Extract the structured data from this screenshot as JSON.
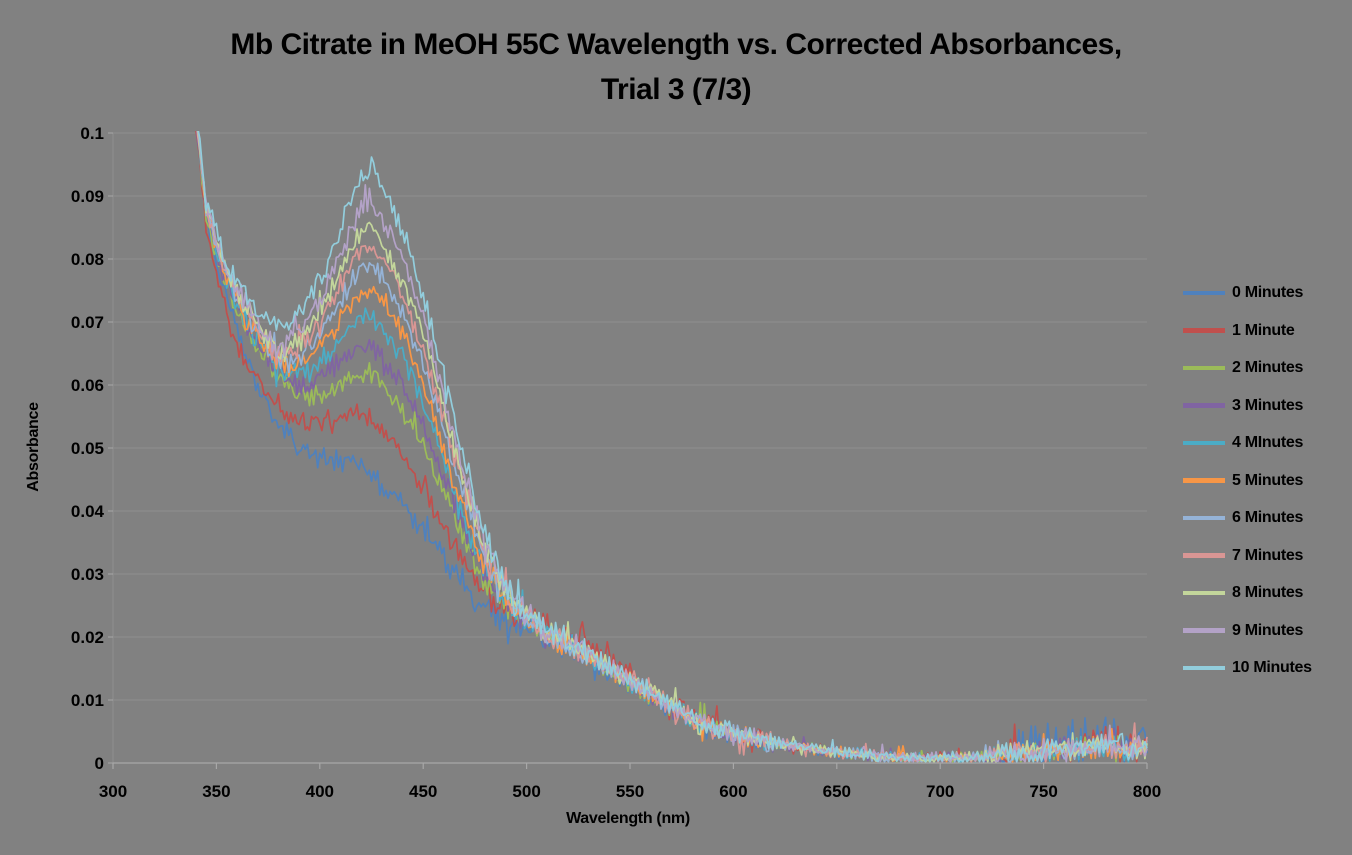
{
  "page": {
    "background": "#818181"
  },
  "chart_data": {
    "type": "line",
    "title": "Mb Citrate in MeOH 55C Wavelength vs. Corrected Absorbances,\nTrial 3 (7/3)",
    "xlabel": "Wavelength (nm)",
    "ylabel": "Absorbance",
    "xlim": [
      300,
      800
    ],
    "ylim": [
      0,
      0.1
    ],
    "x_ticks": [
      300,
      350,
      400,
      450,
      500,
      550,
      600,
      650,
      700,
      750,
      800
    ],
    "y_ticks": [
      0,
      0.01,
      0.02,
      0.03,
      0.04,
      0.05,
      0.06,
      0.07,
      0.08,
      0.09,
      0.1
    ],
    "y_tick_labels": [
      "0",
      "0.01",
      "0.02",
      "0.03",
      "0.04",
      "0.05",
      "0.06",
      "0.07",
      "0.08",
      "0.09",
      "0.1"
    ],
    "grid": "horizontal-major",
    "legend_position": "right",
    "plot_bg": "#818181",
    "gridline_color": "#8e8e8e",
    "axis_line_color": "#a8a8a8",
    "text_color": "#000000",
    "x_nm": [
      337,
      341,
      345,
      350,
      355,
      360,
      365,
      370,
      375,
      380,
      385,
      390,
      395,
      400,
      405,
      410,
      415,
      420,
      425,
      430,
      435,
      440,
      445,
      450,
      455,
      460,
      465,
      470,
      475,
      480,
      485,
      490,
      495,
      500,
      510,
      520,
      530,
      540,
      550,
      560,
      570,
      580,
      590,
      600,
      610,
      620,
      630,
      640,
      650,
      660,
      670,
      680,
      690,
      700,
      710,
      720,
      730,
      740,
      750,
      760,
      770,
      780,
      790,
      800
    ],
    "series": [
      {
        "name": "0 Minutes",
        "color": "#4F81BD",
        "values": [
          0.112,
          0.1,
          0.0875,
          0.079,
          0.0735,
          0.0685,
          0.064,
          0.06,
          0.057,
          0.054,
          0.052,
          0.05,
          0.049,
          0.0485,
          0.048,
          0.048,
          0.0475,
          0.047,
          0.046,
          0.044,
          0.0425,
          0.041,
          0.039,
          0.037,
          0.035,
          0.033,
          0.03,
          0.028,
          0.026,
          0.0245,
          0.0235,
          0.0225,
          0.022,
          0.0215,
          0.0195,
          0.0185,
          0.0165,
          0.0145,
          0.0125,
          0.0105,
          0.0085,
          0.0068,
          0.0055,
          0.0045,
          0.0038,
          0.0032,
          0.0026,
          0.0021,
          0.0018,
          0.0014,
          0.0011,
          0.0008,
          0.0007,
          0.0009,
          0.0008,
          0.001,
          0.0012,
          0.0016,
          0.0022,
          0.0028,
          0.003,
          0.0045,
          0.0028,
          0.0035
        ]
      },
      {
        "name": "1 Minute",
        "color": "#C0504D",
        "values": [
          0.11,
          0.098,
          0.0855,
          0.0765,
          0.0712,
          0.066,
          0.0632,
          0.0605,
          0.0585,
          0.057,
          0.0555,
          0.0545,
          0.054,
          0.054,
          0.0545,
          0.055,
          0.0555,
          0.0555,
          0.055,
          0.0535,
          0.0515,
          0.049,
          0.0465,
          0.0435,
          0.0405,
          0.0375,
          0.0345,
          0.0315,
          0.029,
          0.027,
          0.0255,
          0.0245,
          0.0238,
          0.023,
          0.022,
          0.021,
          0.019,
          0.0165,
          0.0145,
          0.012,
          0.01,
          0.008,
          0.0062,
          0.005,
          0.004,
          0.0033,
          0.0027,
          0.0022,
          0.0018,
          0.0014,
          0.0011,
          0.0008,
          0.0007,
          0.0009,
          0.0008,
          0.001,
          0.0012,
          0.0016,
          0.002,
          0.0024,
          0.0026,
          0.0042,
          0.0024,
          0.0028
        ]
      },
      {
        "name": "2 Minutes",
        "color": "#9BBB59",
        "values": [
          0.1115,
          0.0995,
          0.0872,
          0.08,
          0.0755,
          0.0715,
          0.0685,
          0.066,
          0.0635,
          0.0615,
          0.0595,
          0.058,
          0.058,
          0.0585,
          0.0595,
          0.0605,
          0.0615,
          0.062,
          0.062,
          0.0605,
          0.0585,
          0.056,
          0.053,
          0.05,
          0.0465,
          0.043,
          0.039,
          0.035,
          0.0315,
          0.029,
          0.0268,
          0.025,
          0.0237,
          0.0225,
          0.0198,
          0.0185,
          0.0167,
          0.0147,
          0.0127,
          0.0107,
          0.0087,
          0.0069,
          0.0056,
          0.0046,
          0.0038,
          0.0032,
          0.0026,
          0.0021,
          0.0018,
          0.0014,
          0.0011,
          0.0008,
          0.0007,
          0.0009,
          0.0008,
          0.001,
          0.0012,
          0.0016,
          0.002,
          0.0022,
          0.0024,
          0.0028,
          0.0022,
          0.0026
        ]
      },
      {
        "name": "3 Minutes",
        "color": "#8064A2",
        "values": [
          0.1118,
          0.0998,
          0.0875,
          0.081,
          0.0765,
          0.0725,
          0.0695,
          0.067,
          0.0645,
          0.0625,
          0.061,
          0.06,
          0.0605,
          0.0615,
          0.0625,
          0.064,
          0.0652,
          0.066,
          0.066,
          0.0645,
          0.0625,
          0.06,
          0.057,
          0.0535,
          0.0495,
          0.0455,
          0.041,
          0.037,
          0.0332,
          0.03,
          0.0275,
          0.0255,
          0.024,
          0.0228,
          0.02,
          0.0187,
          0.0168,
          0.0148,
          0.0128,
          0.0108,
          0.0088,
          0.007,
          0.0056,
          0.0046,
          0.0038,
          0.0032,
          0.0026,
          0.0021,
          0.0018,
          0.0014,
          0.0011,
          0.0008,
          0.0007,
          0.0009,
          0.0008,
          0.001,
          0.0012,
          0.0016,
          0.002,
          0.0022,
          0.0024,
          0.0028,
          0.0022,
          0.0026
        ]
      },
      {
        "name": "4 MInutes",
        "color": "#4BACC6",
        "values": [
          0.112,
          0.1,
          0.0878,
          0.0815,
          0.077,
          0.073,
          0.07,
          0.0675,
          0.065,
          0.063,
          0.062,
          0.0615,
          0.062,
          0.0635,
          0.0655,
          0.0675,
          0.0692,
          0.0705,
          0.071,
          0.069,
          0.067,
          0.0645,
          0.061,
          0.057,
          0.0525,
          0.048,
          0.0432,
          0.0385,
          0.0345,
          0.031,
          0.0283,
          0.026,
          0.0244,
          0.023,
          0.0202,
          0.0188,
          0.0169,
          0.0149,
          0.0129,
          0.0109,
          0.0089,
          0.007,
          0.0057,
          0.0047,
          0.0039,
          0.0032,
          0.0026,
          0.0021,
          0.0018,
          0.0014,
          0.0011,
          0.0008,
          0.0007,
          0.0009,
          0.0008,
          0.001,
          0.0012,
          0.0016,
          0.002,
          0.0022,
          0.0024,
          0.0028,
          0.0022,
          0.0026
        ]
      },
      {
        "name": "5 Minutes",
        "color": "#F79646",
        "values": [
          0.1122,
          0.1002,
          0.088,
          0.082,
          0.0775,
          0.0735,
          0.0705,
          0.068,
          0.0655,
          0.0635,
          0.063,
          0.063,
          0.0643,
          0.066,
          0.068,
          0.0705,
          0.073,
          0.0745,
          0.075,
          0.073,
          0.0708,
          0.068,
          0.0643,
          0.06,
          0.055,
          0.05,
          0.045,
          0.04,
          0.0355,
          0.0315,
          0.0286,
          0.026,
          0.0245,
          0.023,
          0.0203,
          0.0189,
          0.017,
          0.015,
          0.013,
          0.011,
          0.009,
          0.0071,
          0.0057,
          0.0047,
          0.0039,
          0.0033,
          0.0026,
          0.0021,
          0.0018,
          0.0014,
          0.0011,
          0.0008,
          0.0007,
          0.0009,
          0.0008,
          0.001,
          0.0012,
          0.0016,
          0.002,
          0.0022,
          0.0024,
          0.0028,
          0.0022,
          0.0026
        ]
      },
      {
        "name": "6 Minutes",
        "color": "#95B3D7",
        "values": [
          0.1124,
          0.1004,
          0.0882,
          0.0822,
          0.0778,
          0.074,
          0.071,
          0.0685,
          0.066,
          0.064,
          0.0638,
          0.0645,
          0.066,
          0.068,
          0.0705,
          0.0735,
          0.0763,
          0.0785,
          0.079,
          0.077,
          0.0745,
          0.0715,
          0.0675,
          0.063,
          0.0578,
          0.0525,
          0.047,
          0.042,
          0.037,
          0.0325,
          0.0293,
          0.0265,
          0.0247,
          0.023,
          0.0204,
          0.019,
          0.017,
          0.015,
          0.013,
          0.011,
          0.009,
          0.0071,
          0.0057,
          0.0047,
          0.0039,
          0.0033,
          0.0026,
          0.0021,
          0.0018,
          0.0014,
          0.0011,
          0.0008,
          0.0007,
          0.0009,
          0.0008,
          0.001,
          0.0012,
          0.0016,
          0.002,
          0.0022,
          0.0024,
          0.0028,
          0.0022,
          0.0026
        ]
      },
      {
        "name": "7 Minutes",
        "color": "#D99694",
        "values": [
          0.1126,
          0.1006,
          0.0884,
          0.0825,
          0.078,
          0.0745,
          0.0715,
          0.069,
          0.0665,
          0.0645,
          0.0648,
          0.066,
          0.068,
          0.07,
          0.073,
          0.076,
          0.079,
          0.0815,
          0.082,
          0.08,
          0.0775,
          0.074,
          0.07,
          0.0655,
          0.06,
          0.0545,
          0.049,
          0.0435,
          0.0382,
          0.0335,
          0.03,
          0.027,
          0.025,
          0.0232,
          0.0205,
          0.019,
          0.0171,
          0.0151,
          0.0131,
          0.0111,
          0.009,
          0.0072,
          0.0058,
          0.0047,
          0.0039,
          0.0033,
          0.0026,
          0.0021,
          0.0018,
          0.0014,
          0.0011,
          0.0008,
          0.0007,
          0.0009,
          0.0008,
          0.001,
          0.0012,
          0.0016,
          0.002,
          0.0022,
          0.0024,
          0.0028,
          0.0022,
          0.0026
        ]
      },
      {
        "name": "8 Minutes",
        "color": "#C3D69B",
        "values": [
          0.1128,
          0.1008,
          0.0886,
          0.0828,
          0.0782,
          0.075,
          0.072,
          0.0695,
          0.067,
          0.065,
          0.0658,
          0.0672,
          0.0693,
          0.0715,
          0.0747,
          0.078,
          0.0815,
          0.0845,
          0.085,
          0.0825,
          0.08,
          0.0765,
          0.0722,
          0.0675,
          0.062,
          0.056,
          0.05,
          0.0445,
          0.039,
          0.034,
          0.0305,
          0.0275,
          0.0253,
          0.0235,
          0.0206,
          0.0191,
          0.0172,
          0.0152,
          0.0132,
          0.0112,
          0.0091,
          0.0072,
          0.0058,
          0.0048,
          0.0039,
          0.0033,
          0.0027,
          0.0021,
          0.0018,
          0.0014,
          0.0011,
          0.0008,
          0.0007,
          0.0009,
          0.0008,
          0.001,
          0.0012,
          0.0016,
          0.002,
          0.0022,
          0.0024,
          0.0028,
          0.0022,
          0.0026
        ]
      },
      {
        "name": "9 Minutes",
        "color": "#B3A2C7",
        "values": [
          0.113,
          0.101,
          0.0888,
          0.083,
          0.0785,
          0.0755,
          0.0725,
          0.07,
          0.0675,
          0.0655,
          0.0668,
          0.0685,
          0.0708,
          0.0735,
          0.077,
          0.0805,
          0.0845,
          0.088,
          0.089,
          0.0865,
          0.0838,
          0.08,
          0.0755,
          0.0705,
          0.0648,
          0.0585,
          0.052,
          0.046,
          0.04,
          0.035,
          0.0312,
          0.028,
          0.0258,
          0.0238,
          0.0207,
          0.0192,
          0.0172,
          0.0152,
          0.0132,
          0.0112,
          0.0091,
          0.0073,
          0.0058,
          0.0048,
          0.004,
          0.0033,
          0.0027,
          0.0021,
          0.0018,
          0.0014,
          0.0011,
          0.0008,
          0.0007,
          0.0009,
          0.0008,
          0.001,
          0.0012,
          0.0016,
          0.002,
          0.0022,
          0.0024,
          0.0028,
          0.0022,
          0.0026
        ]
      },
      {
        "name": "10 Minutes",
        "color": "#92CDDC",
        "values": [
          0.1135,
          0.1015,
          0.0892,
          0.0845,
          0.079,
          0.0765,
          0.074,
          0.0715,
          0.07,
          0.0695,
          0.07,
          0.071,
          0.0735,
          0.0765,
          0.0805,
          0.085,
          0.09,
          0.0935,
          0.0945,
          0.0915,
          0.0885,
          0.0845,
          0.0798,
          0.0745,
          0.068,
          0.0615,
          0.0545,
          0.048,
          0.0418,
          0.0362,
          0.032,
          0.0285,
          0.026,
          0.0242,
          0.021,
          0.0194,
          0.0174,
          0.0154,
          0.0134,
          0.0113,
          0.0092,
          0.0073,
          0.0059,
          0.0048,
          0.004,
          0.0034,
          0.0027,
          0.0022,
          0.0018,
          0.0015,
          0.0011,
          0.0008,
          0.0007,
          0.0009,
          0.0009,
          0.0011,
          0.0013,
          0.0017,
          0.0021,
          0.0023,
          0.0025,
          0.0029,
          0.0023,
          0.0027
        ]
      }
    ],
    "noise_texture": {
      "seed": 20130703,
      "amplitude_ranges": [
        [
          337,
          460,
          0.0013
        ],
        [
          460,
          530,
          0.0016
        ],
        [
          530,
          620,
          0.0012
        ],
        [
          620,
          720,
          0.0007
        ],
        [
          720,
          800,
          0.0014
        ]
      ],
      "spike_probability": 0.05,
      "spike_multiplier": 2.5,
      "series_late_boost": {
        "0": 2.2,
        "1": 1.5
      },
      "late_boost_from_nm": 730
    }
  }
}
